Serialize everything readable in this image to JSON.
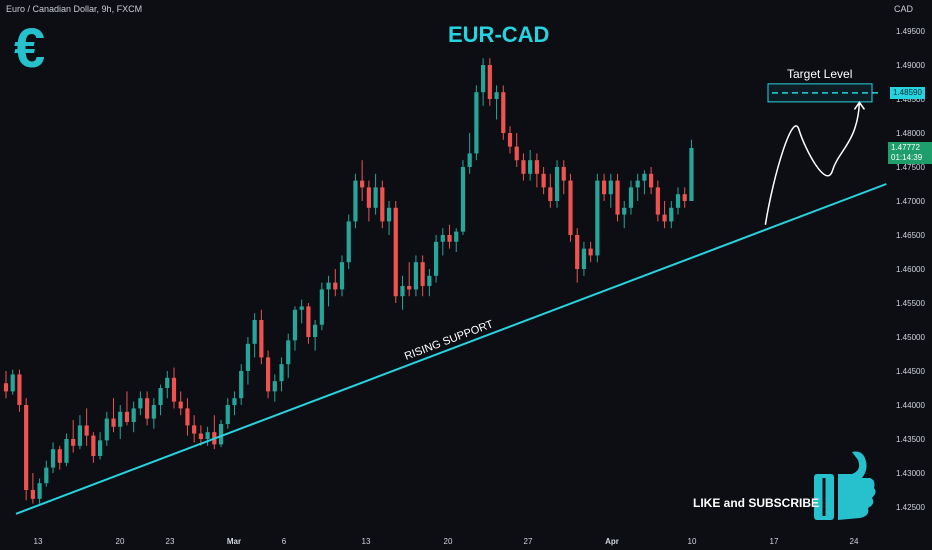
{
  "header": {
    "symbol_line": "Euro / Canadian Dollar, 9h, FXCM",
    "currency": "CAD"
  },
  "title": "EUR-CAD",
  "logo": {
    "icon": "euro-sign-icon",
    "glyph": "€",
    "color": "#26c1cc"
  },
  "annotations": {
    "support_label": "RISING SUPPORT",
    "target_label": "Target Level",
    "cta": "LIKE and SUBSCRIBE",
    "cta_icon": "thumbs-up-icon"
  },
  "price_badges": {
    "target": "1.48590",
    "last_price": "1.47772",
    "countdown": "01:14:39"
  },
  "colors": {
    "background": "#0c0e14",
    "up": "#26a69a",
    "down": "#ef5350",
    "accent": "#26d4e0",
    "text": "#d1d4dc"
  },
  "chart_data": {
    "type": "candlestick",
    "title": "EUR-CAD",
    "xlabel": "",
    "ylabel": "",
    "ylim": [
      1.4225,
      1.4975
    ],
    "y_ticks": [
      1.425,
      1.43,
      1.435,
      1.44,
      1.445,
      1.45,
      1.455,
      1.46,
      1.465,
      1.47,
      1.475,
      1.48,
      1.485,
      1.49,
      1.495
    ],
    "x_ticks": [
      "13",
      "20",
      "23",
      "Mar",
      "6",
      "13",
      "20",
      "27",
      "Apr",
      "10",
      "17",
      "24"
    ],
    "grid": false,
    "candles": [
      [
        1.4432,
        1.445,
        1.441,
        1.442
      ],
      [
        1.442,
        1.4452,
        1.4415,
        1.4445
      ],
      [
        1.4445,
        1.4452,
        1.439,
        1.44
      ],
      [
        1.44,
        1.441,
        1.426,
        1.4275
      ],
      [
        1.4275,
        1.43,
        1.4255,
        1.4262
      ],
      [
        1.4262,
        1.4292,
        1.4255,
        1.4285
      ],
      [
        1.4285,
        1.4318,
        1.428,
        1.4308
      ],
      [
        1.4308,
        1.4345,
        1.43,
        1.4335
      ],
      [
        1.4335,
        1.434,
        1.4305,
        1.4315
      ],
      [
        1.4315,
        1.4358,
        1.431,
        1.435
      ],
      [
        1.435,
        1.4378,
        1.433,
        1.434
      ],
      [
        1.434,
        1.4385,
        1.4335,
        1.437
      ],
      [
        1.437,
        1.4395,
        1.434,
        1.4355
      ],
      [
        1.4355,
        1.436,
        1.4315,
        1.4325
      ],
      [
        1.4325,
        1.436,
        1.432,
        1.4348
      ],
      [
        1.4348,
        1.439,
        1.434,
        1.438
      ],
      [
        1.438,
        1.441,
        1.436,
        1.4368
      ],
      [
        1.4368,
        1.44,
        1.435,
        1.439
      ],
      [
        1.439,
        1.442,
        1.437,
        1.4375
      ],
      [
        1.4375,
        1.4405,
        1.436,
        1.4395
      ],
      [
        1.4395,
        1.442,
        1.4385,
        1.441
      ],
      [
        1.441,
        1.442,
        1.437,
        1.438
      ],
      [
        1.438,
        1.441,
        1.4365,
        1.44
      ],
      [
        1.44,
        1.443,
        1.4385,
        1.4425
      ],
      [
        1.4425,
        1.445,
        1.441,
        1.444
      ],
      [
        1.444,
        1.4455,
        1.4395,
        1.4405
      ],
      [
        1.4405,
        1.442,
        1.4385,
        1.4395
      ],
      [
        1.4395,
        1.441,
        1.4355,
        1.437
      ],
      [
        1.437,
        1.4385,
        1.4345,
        1.4358
      ],
      [
        1.4358,
        1.437,
        1.434,
        1.435
      ],
      [
        1.435,
        1.4368,
        1.434,
        1.436
      ],
      [
        1.436,
        1.4385,
        1.4335,
        1.4342
      ],
      [
        1.4342,
        1.4378,
        1.4338,
        1.4372
      ],
      [
        1.4372,
        1.441,
        1.4365,
        1.44
      ],
      [
        1.44,
        1.442,
        1.4385,
        1.441
      ],
      [
        1.441,
        1.446,
        1.44,
        1.445
      ],
      [
        1.445,
        1.45,
        1.443,
        1.449
      ],
      [
        1.449,
        1.4535,
        1.447,
        1.4525
      ],
      [
        1.4525,
        1.454,
        1.446,
        1.447
      ],
      [
        1.447,
        1.448,
        1.441,
        1.442
      ],
      [
        1.442,
        1.4445,
        1.4405,
        1.4435
      ],
      [
        1.4435,
        1.447,
        1.442,
        1.446
      ],
      [
        1.446,
        1.4505,
        1.444,
        1.4495
      ],
      [
        1.4495,
        1.4545,
        1.448,
        1.454
      ],
      [
        1.454,
        1.4555,
        1.452,
        1.4545
      ],
      [
        1.4545,
        1.455,
        1.449,
        1.45
      ],
      [
        1.45,
        1.4525,
        1.448,
        1.4518
      ],
      [
        1.4518,
        1.458,
        1.451,
        1.457
      ],
      [
        1.457,
        1.459,
        1.4545,
        1.458
      ],
      [
        1.458,
        1.46,
        1.456,
        1.457
      ],
      [
        1.457,
        1.462,
        1.456,
        1.461
      ],
      [
        1.461,
        1.468,
        1.46,
        1.467
      ],
      [
        1.467,
        1.474,
        1.466,
        1.473
      ],
      [
        1.473,
        1.476,
        1.47,
        1.472
      ],
      [
        1.472,
        1.473,
        1.467,
        1.469
      ],
      [
        1.469,
        1.474,
        1.468,
        1.472
      ],
      [
        1.472,
        1.473,
        1.466,
        1.467
      ],
      [
        1.467,
        1.47,
        1.465,
        1.469
      ],
      [
        1.469,
        1.47,
        1.455,
        1.456
      ],
      [
        1.456,
        1.459,
        1.454,
        1.4575
      ],
      [
        1.4575,
        1.461,
        1.456,
        1.457
      ],
      [
        1.457,
        1.462,
        1.456,
        1.461
      ],
      [
        1.461,
        1.462,
        1.456,
        1.4575
      ],
      [
        1.4575,
        1.46,
        1.456,
        1.459
      ],
      [
        1.459,
        1.465,
        1.458,
        1.464
      ],
      [
        1.464,
        1.466,
        1.462,
        1.465
      ],
      [
        1.465,
        1.4665,
        1.463,
        1.464
      ],
      [
        1.464,
        1.466,
        1.4625,
        1.4655
      ],
      [
        1.4655,
        1.476,
        1.465,
        1.475
      ],
      [
        1.475,
        1.48,
        1.474,
        1.477
      ],
      [
        1.477,
        1.487,
        1.476,
        1.486
      ],
      [
        1.486,
        1.491,
        1.484,
        1.49
      ],
      [
        1.49,
        1.491,
        1.484,
        1.485
      ],
      [
        1.485,
        1.487,
        1.482,
        1.486
      ],
      [
        1.486,
        1.487,
        1.479,
        1.48
      ],
      [
        1.48,
        1.481,
        1.477,
        1.478
      ],
      [
        1.478,
        1.48,
        1.475,
        1.476
      ],
      [
        1.476,
        1.477,
        1.473,
        1.474
      ],
      [
        1.474,
        1.4775,
        1.473,
        1.476
      ],
      [
        1.476,
        1.477,
        1.472,
        1.474
      ],
      [
        1.474,
        1.475,
        1.471,
        1.472
      ],
      [
        1.472,
        1.474,
        1.469,
        1.47
      ],
      [
        1.47,
        1.476,
        1.469,
        1.475
      ],
      [
        1.475,
        1.476,
        1.471,
        1.473
      ],
      [
        1.473,
        1.474,
        1.464,
        1.465
      ],
      [
        1.465,
        1.466,
        1.458,
        1.46
      ],
      [
        1.46,
        1.464,
        1.459,
        1.463
      ],
      [
        1.463,
        1.464,
        1.461,
        1.462
      ],
      [
        1.462,
        1.474,
        1.461,
        1.473
      ],
      [
        1.473,
        1.474,
        1.47,
        1.471
      ],
      [
        1.471,
        1.474,
        1.469,
        1.473
      ],
      [
        1.473,
        1.474,
        1.467,
        1.468
      ],
      [
        1.468,
        1.47,
        1.466,
        1.469
      ],
      [
        1.469,
        1.473,
        1.468,
        1.472
      ],
      [
        1.472,
        1.474,
        1.47,
        1.473
      ],
      [
        1.473,
        1.4745,
        1.471,
        1.474
      ],
      [
        1.474,
        1.475,
        1.471,
        1.472
      ],
      [
        1.472,
        1.473,
        1.467,
        1.468
      ],
      [
        1.468,
        1.47,
        1.466,
        1.467
      ],
      [
        1.467,
        1.47,
        1.466,
        1.469
      ],
      [
        1.469,
        1.472,
        1.468,
        1.471
      ],
      [
        1.471,
        1.472,
        1.469,
        1.47
      ],
      [
        1.47,
        1.479,
        1.47,
        1.4778
      ]
    ],
    "support_line": {
      "label": "RISING SUPPORT",
      "from": [
        0,
        1.424
      ],
      "to": [
        131,
        1.4725
      ]
    },
    "target_level": {
      "label": "Target Level",
      "value": 1.4859
    },
    "projection_path": [
      [
        113,
        1.4665
      ],
      [
        118,
        1.4805
      ],
      [
        123,
        1.4745
      ],
      [
        127,
        1.4845
      ]
    ]
  }
}
